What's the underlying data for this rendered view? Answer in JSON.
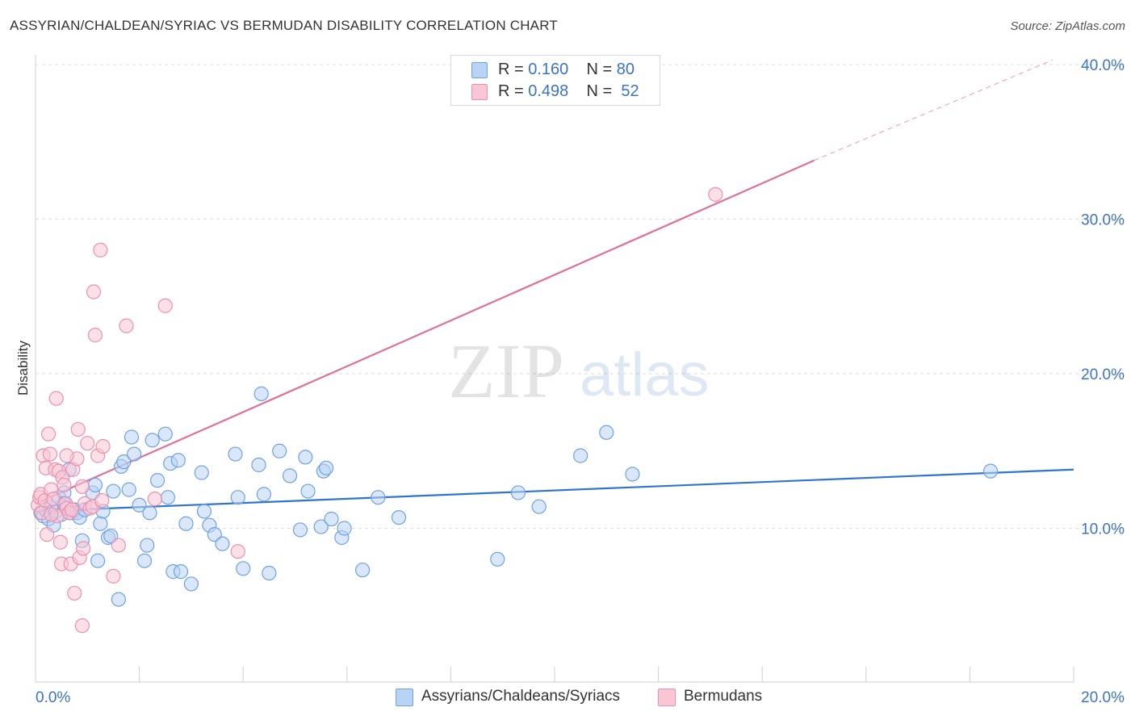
{
  "header": {
    "title": "ASSYRIAN/CHALDEAN/SYRIAC VS BERMUDAN DISABILITY CORRELATION CHART",
    "source": "Source: ZipAtlas.com"
  },
  "watermark": {
    "zip": "ZIP",
    "atlas": "atlas"
  },
  "legend": {
    "rows": [
      {
        "r_label": "R =",
        "r_value": "0.160",
        "n_label": "N =",
        "n_value": "80",
        "color": "#6ea2e6"
      },
      {
        "r_label": "R =",
        "r_value": "0.498",
        "n_label": "N =",
        "n_value": "52",
        "color": "#ee8fae"
      }
    ]
  },
  "bottom_legend": [
    {
      "label": "Assyrians/Chaldeans/Syriacs",
      "color": "#6ea2e6"
    },
    {
      "label": "Bermudans",
      "color": "#ee8fae"
    }
  ],
  "chart_data": {
    "type": "scatter",
    "title": "ASSYRIAN/CHALDEAN/SYRIAC VS BERMUDAN DISABILITY CORRELATION CHART",
    "xlabel": "",
    "ylabel": "Disability",
    "xlim": [
      0,
      20
    ],
    "ylim": [
      0,
      40
    ],
    "x_tick_labels": [
      "0.0%",
      "20.0%"
    ],
    "y_tick_labels": [
      "10.0%",
      "20.0%",
      "30.0%",
      "40.0%"
    ],
    "y_tick_values": [
      10,
      20,
      30,
      40
    ],
    "grid": true,
    "legend_position": "top-center",
    "colors": {
      "blue_fill": "#b9d3f4",
      "blue_stroke": "#6ea2e6",
      "blue_line": "#2f74d0",
      "pink_fill": "#f8c6d5",
      "pink_stroke": "#ee8fae",
      "pink_line": "#e07098"
    },
    "series": [
      {
        "name": "Assyrians/Chaldeans/Syriacs",
        "trend": {
          "x": [
            0,
            20
          ],
          "y": [
            11.1,
            13.8
          ]
        },
        "points": [
          [
            0.1,
            11.0
          ],
          [
            0.15,
            10.8
          ],
          [
            0.2,
            11.2
          ],
          [
            0.25,
            10.6
          ],
          [
            0.3,
            11.4
          ],
          [
            0.35,
            10.2
          ],
          [
            0.4,
            11.1
          ],
          [
            0.45,
            12.0
          ],
          [
            0.5,
            10.9
          ],
          [
            0.55,
            12.3
          ],
          [
            0.6,
            11.3
          ],
          [
            0.65,
            13.8
          ],
          [
            0.7,
            11.0
          ],
          [
            0.75,
            11.2
          ],
          [
            0.8,
            11.0
          ],
          [
            0.85,
            10.7
          ],
          [
            0.9,
            9.2
          ],
          [
            0.95,
            11.2
          ],
          [
            1.1,
            12.3
          ],
          [
            1.15,
            12.8
          ],
          [
            1.2,
            7.9
          ],
          [
            1.25,
            10.3
          ],
          [
            1.3,
            11.1
          ],
          [
            1.4,
            9.4
          ],
          [
            1.45,
            9.5
          ],
          [
            1.5,
            12.4
          ],
          [
            1.6,
            5.4
          ],
          [
            1.65,
            14.0
          ],
          [
            1.7,
            14.3
          ],
          [
            1.8,
            12.5
          ],
          [
            1.85,
            15.9
          ],
          [
            1.9,
            14.8
          ],
          [
            2.0,
            11.5
          ],
          [
            2.1,
            7.9
          ],
          [
            2.15,
            8.9
          ],
          [
            2.2,
            11.0
          ],
          [
            2.25,
            15.7
          ],
          [
            2.35,
            13.1
          ],
          [
            2.5,
            16.1
          ],
          [
            2.55,
            12.0
          ],
          [
            2.6,
            14.2
          ],
          [
            2.65,
            7.2
          ],
          [
            2.75,
            14.4
          ],
          [
            2.8,
            7.2
          ],
          [
            2.9,
            10.3
          ],
          [
            3.0,
            6.4
          ],
          [
            3.2,
            13.6
          ],
          [
            3.25,
            11.1
          ],
          [
            3.35,
            10.2
          ],
          [
            3.45,
            9.6
          ],
          [
            3.6,
            9.0
          ],
          [
            3.85,
            14.8
          ],
          [
            3.9,
            12.0
          ],
          [
            4.0,
            7.4
          ],
          [
            4.3,
            14.1
          ],
          [
            4.35,
            18.7
          ],
          [
            4.4,
            12.2
          ],
          [
            4.5,
            7.1
          ],
          [
            4.7,
            15.0
          ],
          [
            4.9,
            13.4
          ],
          [
            5.1,
            9.9
          ],
          [
            5.2,
            14.6
          ],
          [
            5.25,
            12.4
          ],
          [
            5.5,
            10.1
          ],
          [
            5.55,
            13.7
          ],
          [
            5.6,
            13.9
          ],
          [
            5.7,
            10.6
          ],
          [
            5.9,
            9.4
          ],
          [
            5.95,
            10.0
          ],
          [
            6.3,
            7.3
          ],
          [
            6.6,
            12.0
          ],
          [
            7.0,
            10.7
          ],
          [
            8.9,
            8.0
          ],
          [
            9.3,
            12.3
          ],
          [
            9.7,
            11.4
          ],
          [
            10.5,
            14.7
          ],
          [
            11.0,
            16.2
          ],
          [
            11.5,
            13.5
          ],
          [
            18.4,
            13.7
          ],
          [
            0.55,
            11.6
          ]
        ]
      },
      {
        "name": "Bermudans",
        "trend": {
          "x": [
            0,
            15
          ],
          "y": [
            11.6,
            33.8
          ]
        },
        "trend_extension": {
          "x": [
            15,
            19.6
          ],
          "y": [
            33.8,
            40.3
          ]
        },
        "points": [
          [
            0.05,
            11.5
          ],
          [
            0.08,
            12.0
          ],
          [
            0.1,
            12.2
          ],
          [
            0.12,
            11.0
          ],
          [
            0.15,
            14.7
          ],
          [
            0.18,
            11.8
          ],
          [
            0.2,
            13.9
          ],
          [
            0.22,
            9.6
          ],
          [
            0.25,
            16.1
          ],
          [
            0.28,
            14.8
          ],
          [
            0.3,
            12.5
          ],
          [
            0.35,
            11.9
          ],
          [
            0.38,
            13.8
          ],
          [
            0.4,
            18.4
          ],
          [
            0.42,
            10.8
          ],
          [
            0.45,
            13.7
          ],
          [
            0.48,
            9.1
          ],
          [
            0.5,
            7.7
          ],
          [
            0.52,
            13.3
          ],
          [
            0.55,
            12.8
          ],
          [
            0.58,
            11.6
          ],
          [
            0.6,
            11.3
          ],
          [
            0.65,
            11.0
          ],
          [
            0.68,
            7.7
          ],
          [
            0.7,
            11.2
          ],
          [
            0.72,
            13.8
          ],
          [
            0.75,
            5.8
          ],
          [
            0.8,
            14.5
          ],
          [
            0.82,
            16.4
          ],
          [
            0.85,
            8.1
          ],
          [
            0.9,
            3.7
          ],
          [
            0.92,
            8.7
          ],
          [
            0.95,
            11.6
          ],
          [
            1.0,
            15.5
          ],
          [
            1.05,
            11.3
          ],
          [
            1.1,
            11.4
          ],
          [
            1.12,
            25.3
          ],
          [
            1.15,
            22.5
          ],
          [
            1.2,
            14.7
          ],
          [
            1.25,
            28.0
          ],
          [
            1.28,
            11.8
          ],
          [
            1.3,
            15.3
          ],
          [
            1.5,
            6.9
          ],
          [
            1.6,
            8.9
          ],
          [
            1.75,
            23.1
          ],
          [
            2.3,
            11.9
          ],
          [
            2.5,
            24.4
          ],
          [
            3.9,
            8.5
          ],
          [
            13.1,
            31.6
          ],
          [
            0.3,
            10.9
          ],
          [
            0.6,
            14.7
          ],
          [
            0.9,
            12.7
          ]
        ]
      }
    ]
  }
}
